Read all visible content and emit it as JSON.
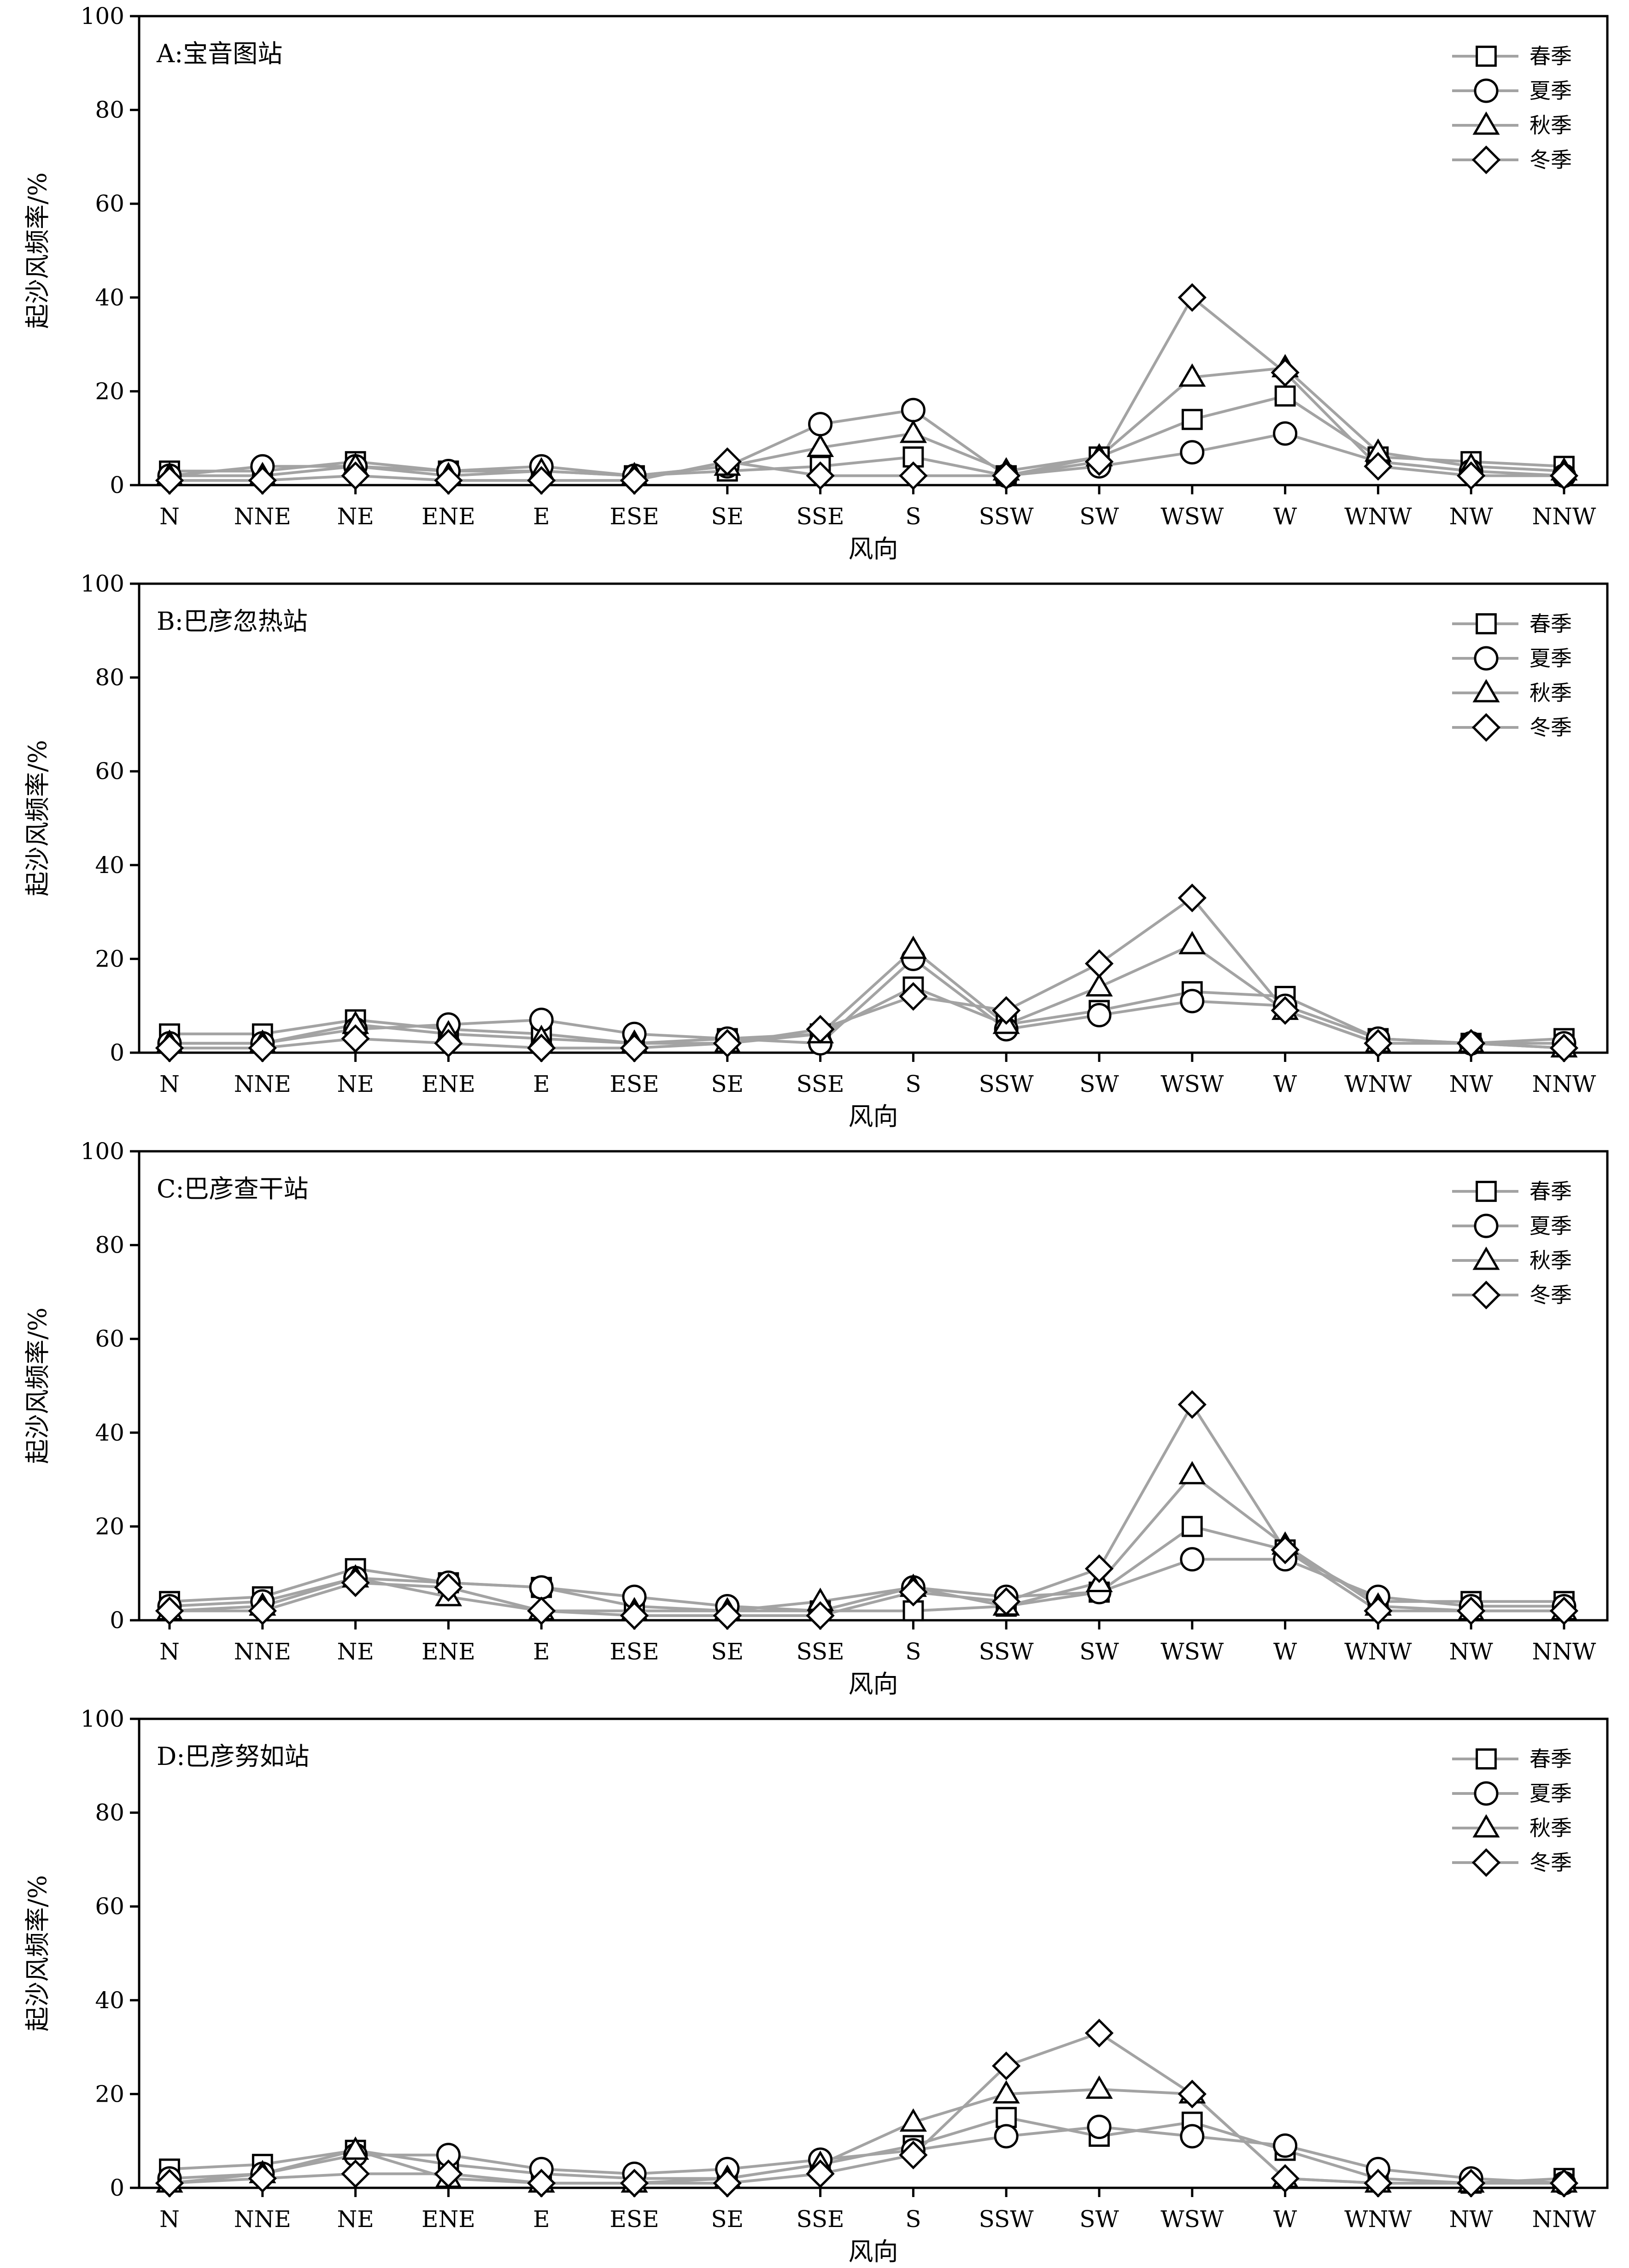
{
  "chart_data": [
    {
      "type": "line",
      "title": "A:宝音图站",
      "xlabel": "风向",
      "ylabel": "起沙风频率/%",
      "ylim": [
        0,
        100
      ],
      "yticks": [
        0,
        20,
        40,
        60,
        80,
        100
      ],
      "legend_position": "top-right",
      "categories": [
        "N",
        "NNE",
        "NE",
        "ENE",
        "E",
        "ESE",
        "SE",
        "SSE",
        "S",
        "SSW",
        "SW",
        "WSW",
        "W",
        "WNW",
        "NW",
        "NNW"
      ],
      "series": [
        {
          "name": "春季",
          "marker": "square",
          "values": [
            3,
            3,
            5,
            3,
            3,
            2,
            3,
            4,
            6,
            2,
            6,
            14,
            19,
            6,
            5,
            4
          ]
        },
        {
          "name": "夏季",
          "marker": "circle",
          "values": [
            2,
            4,
            4,
            3,
            4,
            2,
            4,
            13,
            16,
            2,
            4,
            7,
            11,
            5,
            3,
            2
          ]
        },
        {
          "name": "秋季",
          "marker": "triangle",
          "values": [
            2,
            2,
            4,
            2,
            3,
            2,
            4,
            8,
            11,
            3,
            6,
            23,
            25,
            7,
            4,
            3
          ]
        },
        {
          "name": "冬季",
          "marker": "diamond",
          "values": [
            1,
            1,
            2,
            1,
            1,
            1,
            5,
            2,
            2,
            2,
            5,
            40,
            24,
            4,
            2,
            2
          ]
        }
      ]
    },
    {
      "type": "line",
      "title": "B:巴彦忽热站",
      "xlabel": "风向",
      "ylabel": "起沙风频率/%",
      "ylim": [
        0,
        100
      ],
      "yticks": [
        0,
        20,
        40,
        60,
        80,
        100
      ],
      "legend_position": "top-right",
      "categories": [
        "N",
        "NNE",
        "NE",
        "ENE",
        "E",
        "ESE",
        "SE",
        "SSE",
        "S",
        "SSW",
        "SW",
        "WSW",
        "W",
        "WNW",
        "NW",
        "NNW"
      ],
      "series": [
        {
          "name": "春季",
          "marker": "square",
          "values": [
            4,
            4,
            7,
            5,
            4,
            2,
            3,
            4,
            14,
            6,
            9,
            13,
            12,
            3,
            2,
            3
          ]
        },
        {
          "name": "夏季",
          "marker": "circle",
          "values": [
            2,
            2,
            5,
            6,
            7,
            4,
            3,
            2,
            20,
            5,
            8,
            11,
            10,
            3,
            2,
            2
          ]
        },
        {
          "name": "秋季",
          "marker": "triangle",
          "values": [
            2,
            2,
            6,
            4,
            3,
            2,
            2,
            4,
            22,
            6,
            14,
            23,
            9,
            2,
            2,
            1
          ]
        },
        {
          "name": "冬季",
          "marker": "diamond",
          "values": [
            1,
            1,
            3,
            2,
            1,
            1,
            2,
            5,
            12,
            9,
            19,
            33,
            9,
            2,
            2,
            1
          ]
        }
      ]
    },
    {
      "type": "line",
      "title": "C:巴彦查干站",
      "xlabel": "风向",
      "ylabel": "起沙风频率/%",
      "ylim": [
        0,
        100
      ],
      "yticks": [
        0,
        20,
        40,
        60,
        80,
        100
      ],
      "legend_position": "top-right",
      "categories": [
        "N",
        "NNE",
        "NE",
        "ENE",
        "E",
        "ESE",
        "SE",
        "SSE",
        "S",
        "SSW",
        "SW",
        "WSW",
        "W",
        "WNW",
        "NW",
        "NNW"
      ],
      "series": [
        {
          "name": "春季",
          "marker": "square",
          "values": [
            4,
            5,
            11,
            8,
            7,
            3,
            2,
            2,
            2,
            3,
            6,
            20,
            15,
            4,
            4,
            4
          ]
        },
        {
          "name": "夏季",
          "marker": "circle",
          "values": [
            3,
            4,
            9,
            8,
            7,
            5,
            3,
            2,
            7,
            5,
            6,
            13,
            13,
            5,
            3,
            3
          ]
        },
        {
          "name": "秋季",
          "marker": "triangle",
          "values": [
            2,
            3,
            9,
            5,
            2,
            2,
            2,
            4,
            7,
            3,
            8,
            31,
            16,
            3,
            2,
            2
          ]
        },
        {
          "name": "冬季",
          "marker": "diamond",
          "values": [
            2,
            2,
            8,
            7,
            2,
            1,
            1,
            1,
            6,
            4,
            11,
            46,
            15,
            2,
            2,
            2
          ]
        }
      ]
    },
    {
      "type": "line",
      "title": "D:巴彦努如站",
      "xlabel": "风向",
      "ylabel": "起沙风频率/%",
      "ylim": [
        0,
        100
      ],
      "yticks": [
        0,
        20,
        40,
        60,
        80,
        100
      ],
      "legend_position": "top-right",
      "categories": [
        "N",
        "NNE",
        "NE",
        "ENE",
        "E",
        "ESE",
        "SE",
        "SSE",
        "S",
        "SSW",
        "SW",
        "WSW",
        "W",
        "WNW",
        "NW",
        "NNW"
      ],
      "series": [
        {
          "name": "春季",
          "marker": "square",
          "values": [
            4,
            5,
            8,
            5,
            3,
            2,
            2,
            5,
            9,
            15,
            11,
            14,
            8,
            2,
            1,
            2
          ]
        },
        {
          "name": "夏季",
          "marker": "circle",
          "values": [
            2,
            3,
            7,
            7,
            4,
            3,
            4,
            6,
            8,
            11,
            13,
            11,
            9,
            4,
            2,
            1
          ]
        },
        {
          "name": "秋季",
          "marker": "triangle",
          "values": [
            1,
            3,
            8,
            2,
            1,
            1,
            2,
            5,
            14,
            20,
            21,
            20,
            2,
            1,
            1,
            1
          ]
        },
        {
          "name": "冬季",
          "marker": "diamond",
          "values": [
            1,
            2,
            3,
            3,
            1,
            1,
            1,
            3,
            7,
            26,
            33,
            20,
            2,
            1,
            1,
            1
          ]
        }
      ]
    }
  ]
}
